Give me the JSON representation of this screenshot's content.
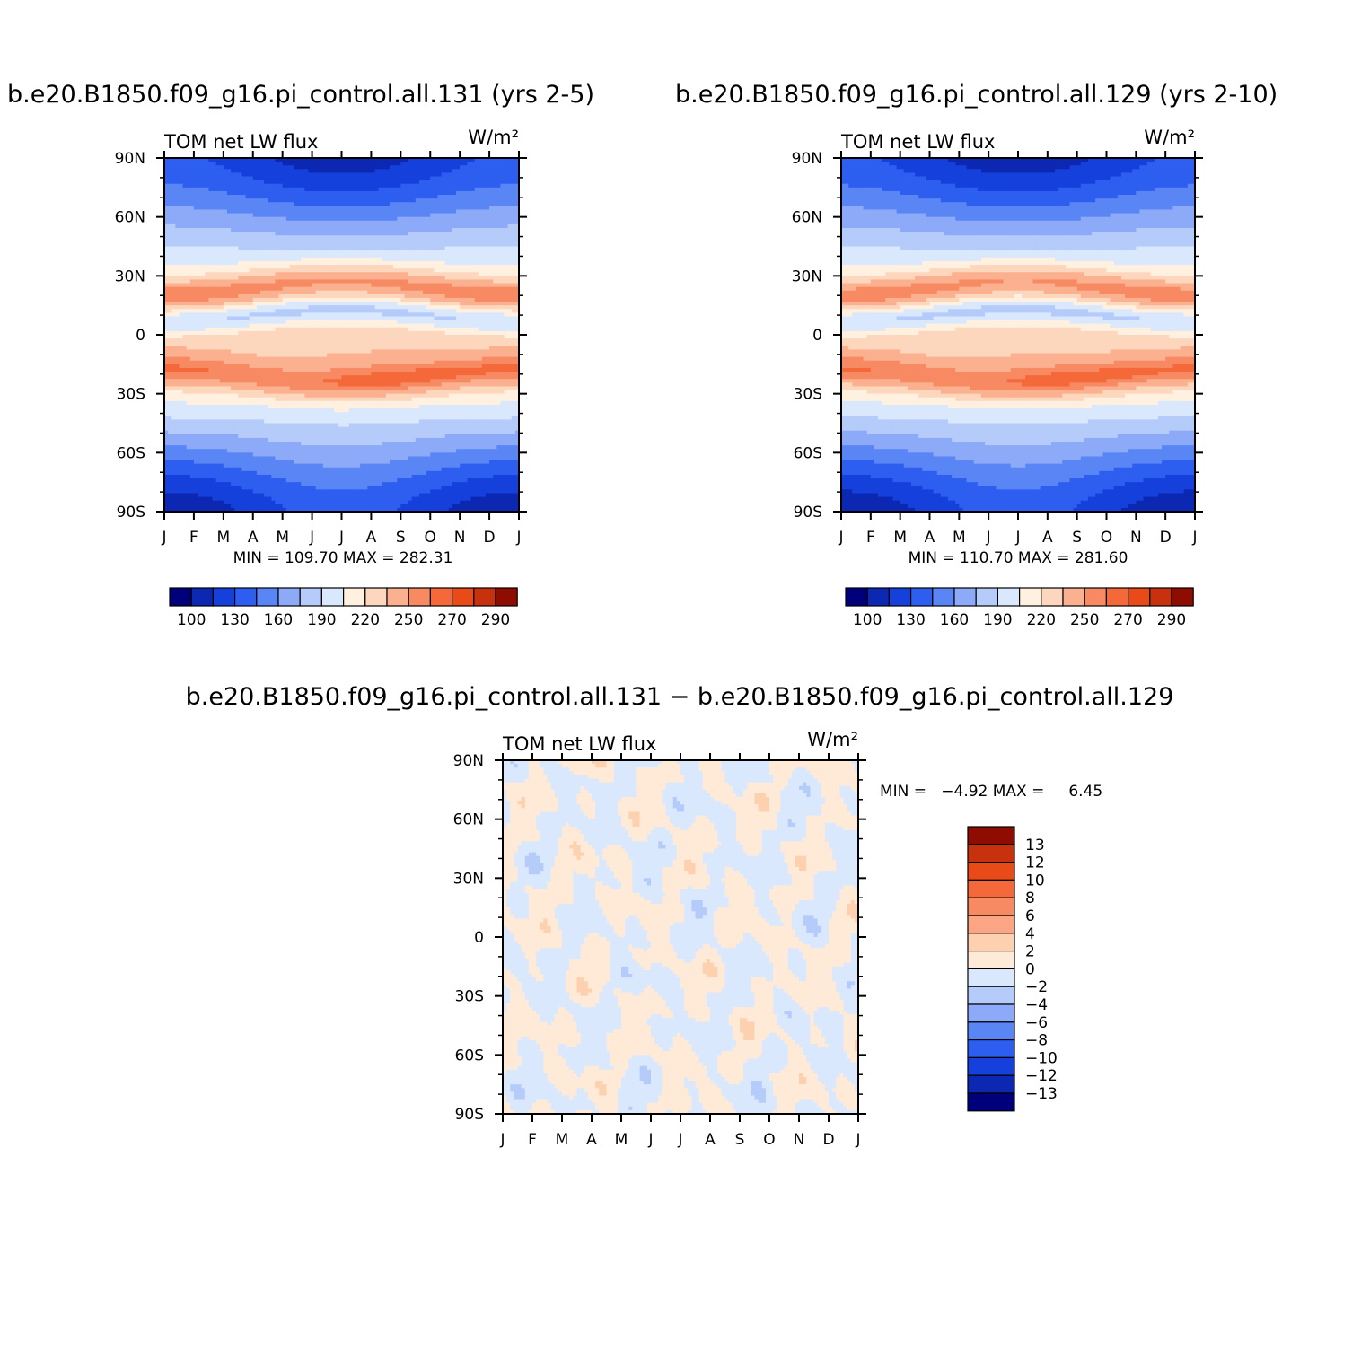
{
  "colors": {
    "abs_levels": [
      "#00007a",
      "#0c28b2",
      "#1540dc",
      "#2d5ef0",
      "#5a86f5",
      "#8caaf8",
      "#b5cbfa",
      "#d9e8fd",
      "#fff0e0",
      "#fdd7bd",
      "#fbb190",
      "#f78a62",
      "#f5683a",
      "#e84a18",
      "#c8310e",
      "#8e0c00"
    ],
    "diff_levels": [
      "#00007a",
      "#0c28b2",
      "#1540dc",
      "#2d5ef0",
      "#5a86f5",
      "#8caaf8",
      "#b5cbfa",
      "#d9e8fd",
      "#ffead8",
      "#fdd0b0",
      "#fba585",
      "#f78a62",
      "#f5683a",
      "#e84a18",
      "#c8310e",
      "#8e0c00"
    ]
  },
  "chart_data": [
    {
      "type": "heatmap",
      "title": "b.e20.B1850.f09_g16.pi_control.all.131 (yrs 2-5)",
      "left_label": "TOM net LW flux",
      "units": "W/m²",
      "x_ticks": [
        "J",
        "F",
        "M",
        "A",
        "M",
        "J",
        "J",
        "A",
        "S",
        "O",
        "N",
        "D",
        "J"
      ],
      "y_ticks": [
        "90N",
        "60N",
        "30N",
        "0",
        "30S",
        "60S",
        "90S"
      ],
      "stats": "MIN = 109.70 MAX = 282.31",
      "min": 109.7,
      "max": 282.31,
      "colorbar_labels": [
        "100",
        "130",
        "160",
        "190",
        "220",
        "250",
        "270",
        "290"
      ]
    },
    {
      "type": "heatmap",
      "title": "b.e20.B1850.f09_g16.pi_control.all.129 (yrs 2-10)",
      "left_label": "TOM net LW flux",
      "units": "W/m²",
      "x_ticks": [
        "J",
        "F",
        "M",
        "A",
        "M",
        "J",
        "J",
        "A",
        "S",
        "O",
        "N",
        "D",
        "J"
      ],
      "y_ticks": [
        "90N",
        "60N",
        "30N",
        "0",
        "30S",
        "60S",
        "90S"
      ],
      "stats": "MIN = 110.70 MAX = 281.60",
      "min": 110.7,
      "max": 281.6,
      "colorbar_labels": [
        "100",
        "130",
        "160",
        "190",
        "220",
        "250",
        "270",
        "290"
      ]
    },
    {
      "type": "heatmap",
      "title": "b.e20.B1850.f09_g16.pi_control.all.131 − b.e20.B1850.f09_g16.pi_control.all.129",
      "left_label": "TOM net LW flux",
      "units": "W/m²",
      "x_ticks": [
        "J",
        "F",
        "M",
        "A",
        "M",
        "J",
        "J",
        "A",
        "S",
        "O",
        "N",
        "D",
        "J"
      ],
      "y_ticks": [
        "90N",
        "60N",
        "30N",
        "0",
        "30S",
        "60S",
        "90S"
      ],
      "stats": "MIN =   −4.92 MAX =     6.45",
      "min": -4.92,
      "max": 6.45,
      "colorbar_labels": [
        "13",
        "12",
        "10",
        "8",
        "6",
        "4",
        "2",
        "0",
        "−2",
        "−4",
        "−6",
        "−8",
        "−10",
        "−12",
        "−13"
      ]
    }
  ]
}
